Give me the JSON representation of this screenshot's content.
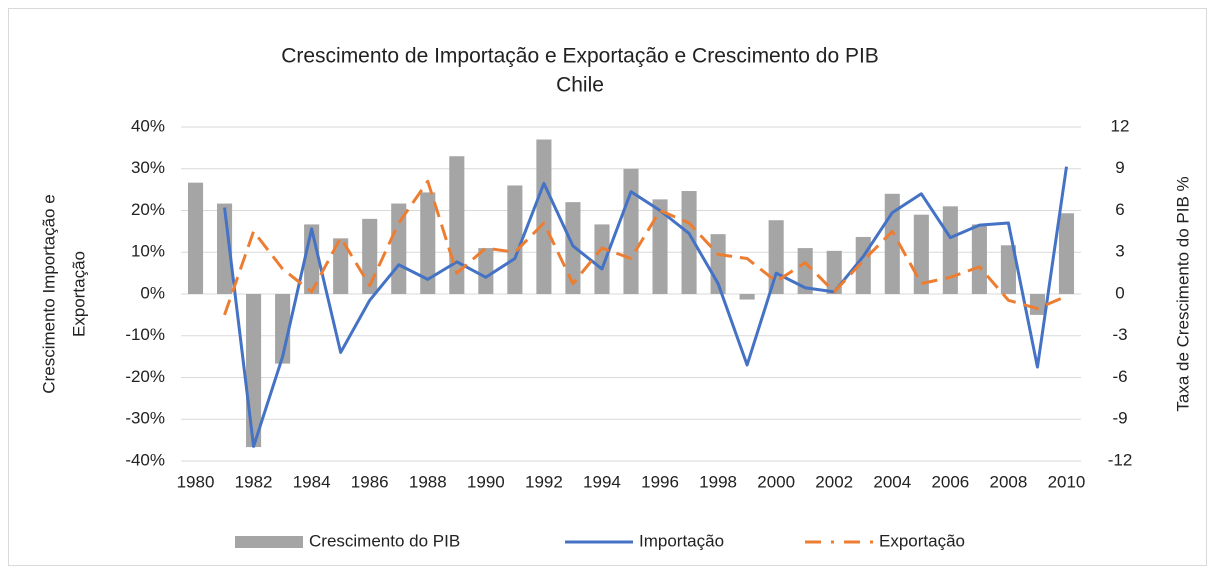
{
  "chart_data": {
    "type": "combo",
    "title": "Crescimento de Importação e Exportação e Crescimento do PIB",
    "subtitle": "Chile",
    "ylabel": [
      "Crescimento Importação e",
      "Exportação"
    ],
    "y2label": "Taxa de Crescimento do PIB %",
    "categories": [
      "1980",
      null,
      "1982",
      null,
      "1984",
      null,
      "1986",
      null,
      "1988",
      null,
      "1990",
      null,
      "1992",
      null,
      "1994",
      null,
      "1996",
      null,
      "1998",
      null,
      "2000",
      null,
      "2002",
      null,
      "2004",
      null,
      "2006",
      null,
      "2008",
      null,
      "2010"
    ],
    "ylim": [
      -40,
      40
    ],
    "yticks": [
      {
        "value": -40,
        "label": "-40%"
      },
      {
        "value": -30,
        "label": "-30%"
      },
      {
        "value": -20,
        "label": "-20%"
      },
      {
        "value": -10,
        "label": "-10%"
      },
      {
        "value": 0,
        "label": "0%"
      },
      {
        "value": 10,
        "label": "10%"
      },
      {
        "value": 20,
        "label": "20%"
      },
      {
        "value": 30,
        "label": "30%"
      },
      {
        "value": 40,
        "label": "40%"
      }
    ],
    "y2lim": [
      -12,
      12
    ],
    "y2ticks": [
      -12,
      -9,
      -6,
      -3,
      0,
      3,
      6,
      9,
      12
    ],
    "grid": true,
    "legend": "bottom",
    "series": [
      {
        "name": "Crescimento do PIB",
        "type": "bar",
        "axis": "y2",
        "color": "#a5a5a5",
        "values": [
          8.0,
          6.5,
          -11.0,
          -5.0,
          5.0,
          4.0,
          5.4,
          6.5,
          7.3,
          9.9,
          3.3,
          7.8,
          11.1,
          6.6,
          5.0,
          9.0,
          6.8,
          7.4,
          4.3,
          -0.4,
          5.3,
          3.3,
          3.1,
          4.1,
          7.2,
          5.7,
          6.3,
          5.0,
          3.5,
          -1.5,
          5.8
        ]
      },
      {
        "name": "Importação",
        "type": "line",
        "color": "#4472c4",
        "values": [
          null,
          20.7,
          -36.5,
          -15,
          15.6,
          -14,
          -1.5,
          7,
          3.5,
          7.7,
          4,
          8.5,
          26.5,
          11.5,
          6,
          24.5,
          20,
          14.5,
          2.5,
          -17,
          5,
          1.5,
          0.5,
          9,
          19.5,
          24,
          13.5,
          16.5,
          17,
          -17.5,
          30.5
        ]
      },
      {
        "name": "Exportação",
        "type": "line",
        "dashed": true,
        "color": "#ed7d31",
        "values": [
          null,
          -5,
          15,
          6,
          0.5,
          13.5,
          2,
          17,
          27,
          5,
          11,
          10,
          17,
          2.5,
          11,
          8.5,
          20,
          17,
          9.5,
          8.5,
          3,
          7.5,
          0.5,
          8,
          15,
          2.5,
          4,
          6.5,
          -1.5,
          -3.5,
          -0.5
        ]
      }
    ]
  }
}
